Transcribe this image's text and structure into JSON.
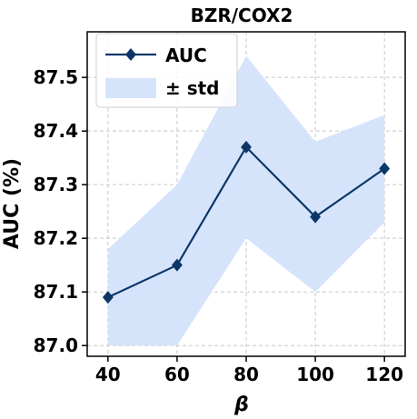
{
  "chart_data": {
    "type": "line",
    "title": "BZR/COX2",
    "xlabel": "β",
    "ylabel": "AUC (%)",
    "x": [
      40,
      60,
      80,
      100,
      120
    ],
    "series": [
      {
        "name": "AUC",
        "values": [
          87.09,
          87.15,
          87.37,
          87.24,
          87.33
        ],
        "band_lower": [
          87.0,
          87.0,
          87.2,
          87.1,
          87.23
        ],
        "band_upper": [
          87.18,
          87.3,
          87.54,
          87.38,
          87.43
        ],
        "band_name": "± std",
        "marker": "diamond"
      }
    ],
    "xlim": [
      34,
      126
    ],
    "ylim": [
      86.98,
      87.585
    ],
    "xticks": [
      "40",
      "60",
      "80",
      "100",
      "120"
    ],
    "yticks": [
      "87.0",
      "87.1",
      "87.2",
      "87.3",
      "87.4",
      "87.5"
    ],
    "grid": true,
    "legend_position": "top-left",
    "colors": {
      "line": "#0b3768",
      "band": "#d6e4fb",
      "grid": "#c8c8c8",
      "axis": "#000000"
    }
  }
}
